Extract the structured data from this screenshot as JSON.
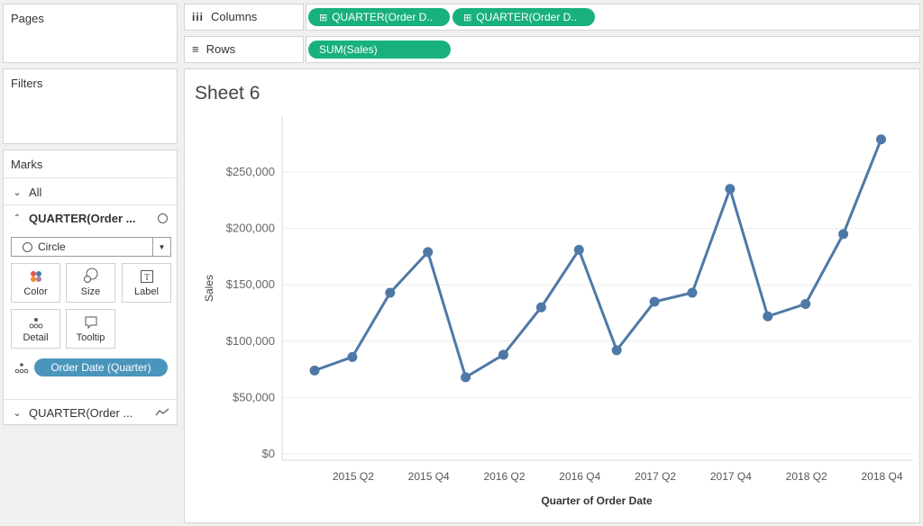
{
  "cards": {
    "pages": "Pages",
    "filters": "Filters",
    "marks": "Marks"
  },
  "marks": {
    "all_label": "All",
    "active_layer": "QUARTER(Order ...",
    "mark_type": "Circle",
    "buttons": {
      "color": "Color",
      "size": "Size",
      "label": "Label",
      "detail": "Detail",
      "tooltip": "Tooltip"
    },
    "detail_pill": "Order Date (Quarter)",
    "second_layer": "QUARTER(Order ..."
  },
  "shelves": {
    "columns_label": "Columns",
    "rows_label": "Rows",
    "columns_pills": [
      "QUARTER(Order D..",
      "QUARTER(Order D.."
    ],
    "rows_pill": "SUM(Sales)"
  },
  "sheet_title": "Sheet 6",
  "colors": {
    "pill_green": "#18b07f",
    "pill_blue": "#4a95bb",
    "line": "#4e79a7"
  },
  "chart_data": {
    "type": "line",
    "xlabel": "Quarter of Order Date",
    "ylabel": "Sales",
    "categories": [
      "2015 Q1",
      "2015 Q2",
      "2015 Q3",
      "2015 Q4",
      "2016 Q1",
      "2016 Q2",
      "2016 Q3",
      "2016 Q4",
      "2017 Q1",
      "2017 Q2",
      "2017 Q3",
      "2017 Q4",
      "2018 Q1",
      "2018 Q2",
      "2018 Q3",
      "2018 Q4"
    ],
    "tick_labels": [
      "2015 Q2",
      "2015 Q4",
      "2016 Q2",
      "2016 Q4",
      "2017 Q2",
      "2017 Q4",
      "2018 Q2",
      "2018 Q4"
    ],
    "values": [
      74000,
      86000,
      143000,
      179000,
      68000,
      88000,
      130000,
      181000,
      92000,
      135000,
      143000,
      235000,
      122000,
      133000,
      195000,
      279000
    ],
    "y_ticks": [
      0,
      50000,
      100000,
      150000,
      200000,
      250000
    ],
    "y_tick_labels": [
      "$0",
      "$50,000",
      "$100,000",
      "$150,000",
      "$200,000",
      "$250,000"
    ],
    "ylim": [
      0,
      300000
    ],
    "grid": true,
    "markers": "circle"
  }
}
